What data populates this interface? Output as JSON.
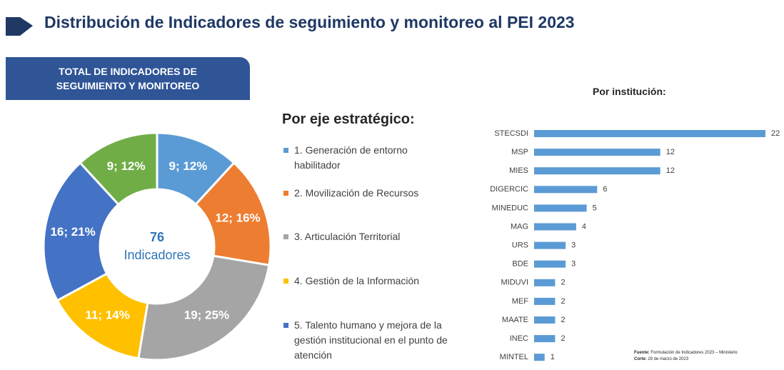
{
  "title": "Distribución de Indicadores de seguimiento y monitoreo al PEI 2023",
  "source": {
    "label": "Fuente:",
    "text": "Formulación de Indicadores 2023 – Ministerio",
    "date_label": "Corte:",
    "date_text": "29 de marzo de 2023"
  },
  "chart_data": [
    {
      "type": "pie",
      "donut": true,
      "title": "TOTAL DE INDICADORES DE SEGUIMIENTO Y MONITOREO",
      "legend_title": "Por eje estratégico:",
      "center_value": 76,
      "center_label": "Indicadores",
      "categories": [
        "1. Generación de entorno habilitador",
        "2. Movilización de Recursos",
        "3. Articulación Territorial",
        "4. Gestión de la Información",
        "5. Talento humano y mejora de la gestión institucional en el punto de atención",
        null
      ],
      "values": [
        9,
        12,
        19,
        11,
        16,
        9
      ],
      "value_labels": [
        "9; 12%",
        "12; 16%",
        "19; 25%",
        "11; 14%",
        "16; 21%",
        "9; 12%"
      ],
      "colors": [
        "#5b9bd5",
        "#ed7d31",
        "#a5a5a5",
        "#ffc000",
        "#4472c4",
        "#70ad47"
      ]
    },
    {
      "type": "bar",
      "orientation": "horizontal",
      "title": "Por institución:",
      "categories": [
        "STECSDI",
        "MSP",
        "MIES",
        "DIGERCIC",
        "MINEDUC",
        "MAG",
        "URS",
        "BDE",
        "MIDUVI",
        "MEF",
        "MAATE",
        "INEC",
        "MINTEL"
      ],
      "values": [
        22,
        12,
        12,
        6,
        5,
        4,
        3,
        3,
        2,
        2,
        2,
        2,
        1
      ],
      "color": "#5b9bd5"
    }
  ]
}
